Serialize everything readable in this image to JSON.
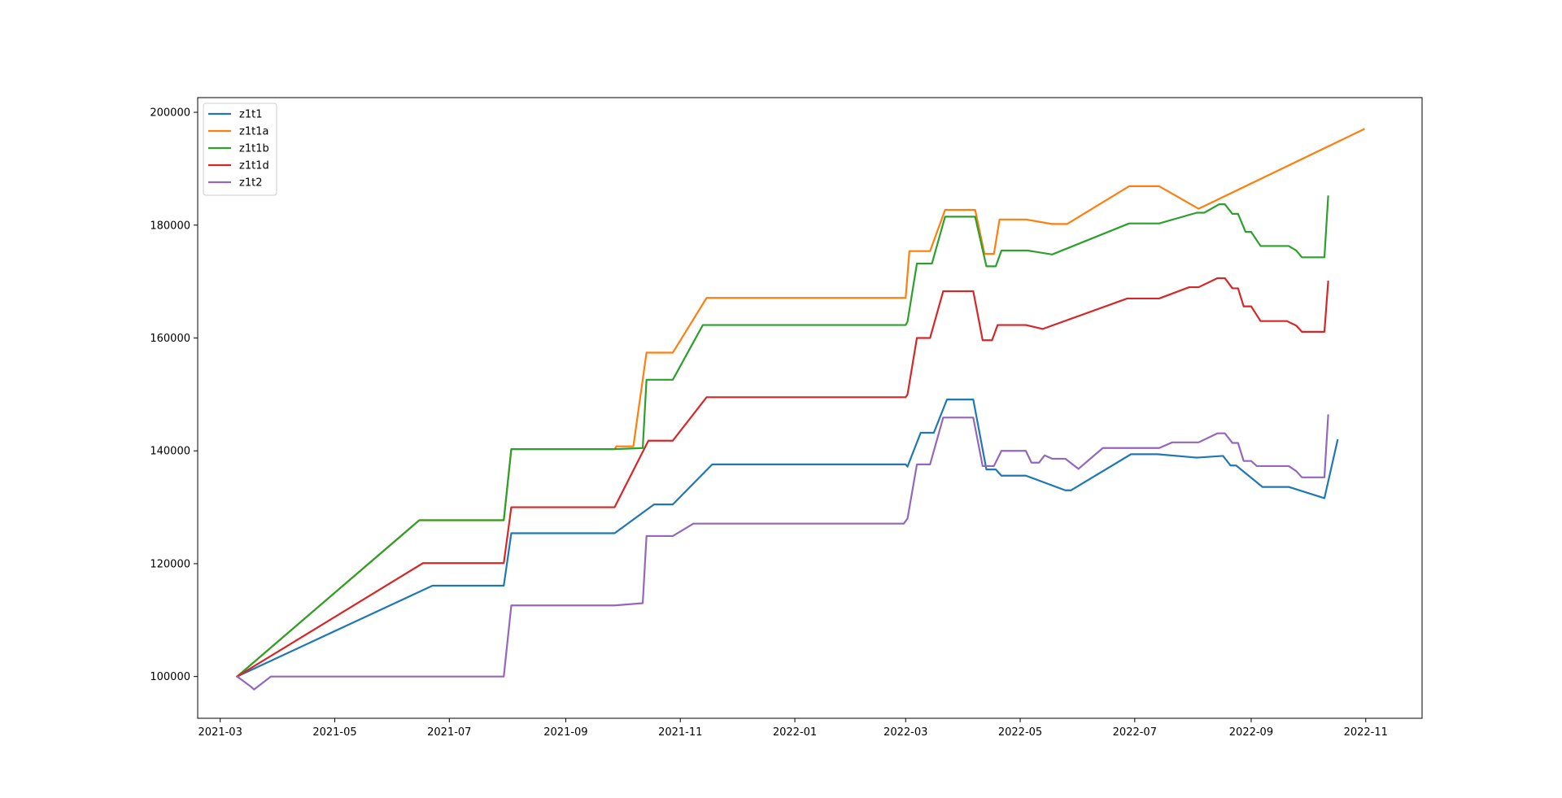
{
  "chart_data": {
    "type": "line",
    "title": "",
    "xlabel": "",
    "ylabel": "",
    "grid": false,
    "legend_position": "top-left",
    "x_ticks": [
      "2021-03",
      "2021-05",
      "2021-07",
      "2021-09",
      "2021-11",
      "2022-01",
      "2022-03",
      "2022-05",
      "2022-07",
      "2022-09",
      "2022-11"
    ],
    "y_ticks": [
      100000,
      120000,
      140000,
      160000,
      180000,
      200000
    ],
    "xlim": [
      "2021-02-17",
      "2022-12-01"
    ],
    "ylim": [
      92600,
      202600
    ],
    "series": [
      {
        "name": "z1t1",
        "color": "#1f77b4",
        "points": [
          [
            "2021-03-10",
            100000
          ],
          [
            "2021-06-22",
            116100
          ],
          [
            "2021-07-30",
            116100
          ],
          [
            "2021-08-03",
            125400
          ],
          [
            "2021-09-27",
            125400
          ],
          [
            "2021-10-18",
            130500
          ],
          [
            "2021-10-28",
            130500
          ],
          [
            "2021-11-18",
            137600
          ],
          [
            "2022-03-01",
            137600
          ],
          [
            "2022-03-02",
            137200
          ],
          [
            "2022-03-09",
            143200
          ],
          [
            "2022-03-16",
            143200
          ],
          [
            "2022-03-23",
            149100
          ],
          [
            "2022-04-06",
            149100
          ],
          [
            "2022-04-13",
            136700
          ],
          [
            "2022-04-18",
            136700
          ],
          [
            "2022-04-21",
            135600
          ],
          [
            "2022-05-04",
            135600
          ],
          [
            "2022-05-25",
            133000
          ],
          [
            "2022-05-28",
            133000
          ],
          [
            "2022-06-29",
            139400
          ],
          [
            "2022-07-13",
            139400
          ],
          [
            "2022-08-03",
            138800
          ],
          [
            "2022-08-17",
            139100
          ],
          [
            "2022-08-21",
            137400
          ],
          [
            "2022-08-24",
            137400
          ],
          [
            "2022-09-07",
            133600
          ],
          [
            "2022-09-21",
            133600
          ],
          [
            "2022-10-10",
            131600
          ],
          [
            "2022-10-17",
            141900
          ]
        ]
      },
      {
        "name": "z1t1a",
        "color": "#ff7f0e",
        "points": [
          [
            "2021-03-10",
            100000
          ],
          [
            "2021-06-15",
            127700
          ],
          [
            "2021-07-30",
            127700
          ],
          [
            "2021-08-03",
            140300
          ],
          [
            "2021-09-27",
            140300
          ],
          [
            "2021-09-28",
            140800
          ],
          [
            "2021-10-07",
            140800
          ],
          [
            "2021-10-14",
            157400
          ],
          [
            "2021-10-28",
            157400
          ],
          [
            "2021-11-15",
            167100
          ],
          [
            "2022-03-01",
            167100
          ],
          [
            "2022-03-03",
            175400
          ],
          [
            "2022-03-14",
            175400
          ],
          [
            "2022-03-22",
            182700
          ],
          [
            "2022-04-07",
            182700
          ],
          [
            "2022-04-12",
            174900
          ],
          [
            "2022-04-17",
            174900
          ],
          [
            "2022-04-20",
            181000
          ],
          [
            "2022-05-04",
            181000
          ],
          [
            "2022-05-18",
            180200
          ],
          [
            "2022-05-26",
            180200
          ],
          [
            "2022-06-28",
            186900
          ],
          [
            "2022-07-14",
            186900
          ],
          [
            "2022-08-04",
            182900
          ],
          [
            "2022-10-31",
            197000
          ]
        ]
      },
      {
        "name": "z1t1b",
        "color": "#2ca02c",
        "points": [
          [
            "2021-03-10",
            100000
          ],
          [
            "2021-06-15",
            127700
          ],
          [
            "2021-07-30",
            127700
          ],
          [
            "2021-08-03",
            140300
          ],
          [
            "2021-09-27",
            140300
          ],
          [
            "2021-10-12",
            140500
          ],
          [
            "2021-10-14",
            152600
          ],
          [
            "2021-10-28",
            152600
          ],
          [
            "2021-11-13",
            162300
          ],
          [
            "2022-03-01",
            162300
          ],
          [
            "2022-03-02",
            162900
          ],
          [
            "2022-03-07",
            173200
          ],
          [
            "2022-03-15",
            173200
          ],
          [
            "2022-03-22",
            181500
          ],
          [
            "2022-04-07",
            181500
          ],
          [
            "2022-04-13",
            172700
          ],
          [
            "2022-04-18",
            172700
          ],
          [
            "2022-04-21",
            175500
          ],
          [
            "2022-05-05",
            175500
          ],
          [
            "2022-05-18",
            174800
          ],
          [
            "2022-06-28",
            180300
          ],
          [
            "2022-07-14",
            180300
          ],
          [
            "2022-08-03",
            182200
          ],
          [
            "2022-08-07",
            182200
          ],
          [
            "2022-08-15",
            183700
          ],
          [
            "2022-08-18",
            183700
          ],
          [
            "2022-08-22",
            182000
          ],
          [
            "2022-08-25",
            182000
          ],
          [
            "2022-08-29",
            178800
          ],
          [
            "2022-09-01",
            178800
          ],
          [
            "2022-09-06",
            176300
          ],
          [
            "2022-09-21",
            176300
          ],
          [
            "2022-09-25",
            175500
          ],
          [
            "2022-09-28",
            174300
          ],
          [
            "2022-10-10",
            174300
          ],
          [
            "2022-10-12",
            185100
          ]
        ]
      },
      {
        "name": "z1t1d",
        "color": "#d62728",
        "points": [
          [
            "2021-03-10",
            100000
          ],
          [
            "2021-06-17",
            120100
          ],
          [
            "2021-07-30",
            120100
          ],
          [
            "2021-08-03",
            130000
          ],
          [
            "2021-09-27",
            130000
          ],
          [
            "2021-10-15",
            141800
          ],
          [
            "2021-10-28",
            141800
          ],
          [
            "2021-11-15",
            149500
          ],
          [
            "2022-03-01",
            149500
          ],
          [
            "2022-03-02",
            150000
          ],
          [
            "2022-03-07",
            160000
          ],
          [
            "2022-03-14",
            160000
          ],
          [
            "2022-03-21",
            168300
          ],
          [
            "2022-04-06",
            168300
          ],
          [
            "2022-04-11",
            159600
          ],
          [
            "2022-04-16",
            159600
          ],
          [
            "2022-04-19",
            162300
          ],
          [
            "2022-05-04",
            162300
          ],
          [
            "2022-05-13",
            161600
          ],
          [
            "2022-06-27",
            167000
          ],
          [
            "2022-07-14",
            167000
          ],
          [
            "2022-07-30",
            169000
          ],
          [
            "2022-08-04",
            169000
          ],
          [
            "2022-08-14",
            170600
          ],
          [
            "2022-08-18",
            170600
          ],
          [
            "2022-08-22",
            168800
          ],
          [
            "2022-08-25",
            168800
          ],
          [
            "2022-08-28",
            165600
          ],
          [
            "2022-09-01",
            165600
          ],
          [
            "2022-09-06",
            163000
          ],
          [
            "2022-09-20",
            163000
          ],
          [
            "2022-09-25",
            162200
          ],
          [
            "2022-09-28",
            161100
          ],
          [
            "2022-10-10",
            161100
          ],
          [
            "2022-10-12",
            170000
          ]
        ]
      },
      {
        "name": "z1t2",
        "color": "#9467bd",
        "points": [
          [
            "2021-03-10",
            100000
          ],
          [
            "2021-03-17",
            98300
          ],
          [
            "2021-03-19",
            97700
          ],
          [
            "2021-03-28",
            100000
          ],
          [
            "2021-07-30",
            100000
          ],
          [
            "2021-08-03",
            112600
          ],
          [
            "2021-09-27",
            112600
          ],
          [
            "2021-10-12",
            113000
          ],
          [
            "2021-10-14",
            124900
          ],
          [
            "2021-10-28",
            124900
          ],
          [
            "2021-11-08",
            127100
          ],
          [
            "2022-02-28",
            127100
          ],
          [
            "2022-03-02",
            128000
          ],
          [
            "2022-03-07",
            137600
          ],
          [
            "2022-03-14",
            137600
          ],
          [
            "2022-03-21",
            145900
          ],
          [
            "2022-04-06",
            145900
          ],
          [
            "2022-04-11",
            137300
          ],
          [
            "2022-04-17",
            137300
          ],
          [
            "2022-04-21",
            140000
          ],
          [
            "2022-05-04",
            140000
          ],
          [
            "2022-05-07",
            137900
          ],
          [
            "2022-05-11",
            137900
          ],
          [
            "2022-05-14",
            139200
          ],
          [
            "2022-05-18",
            138600
          ],
          [
            "2022-05-25",
            138600
          ],
          [
            "2022-06-01",
            136800
          ],
          [
            "2022-06-14",
            140500
          ],
          [
            "2022-07-14",
            140500
          ],
          [
            "2022-07-21",
            141500
          ],
          [
            "2022-08-04",
            141500
          ],
          [
            "2022-08-14",
            143100
          ],
          [
            "2022-08-18",
            143100
          ],
          [
            "2022-08-22",
            141400
          ],
          [
            "2022-08-25",
            141400
          ],
          [
            "2022-08-28",
            138200
          ],
          [
            "2022-09-01",
            138200
          ],
          [
            "2022-09-04",
            137300
          ],
          [
            "2022-09-21",
            137300
          ],
          [
            "2022-09-25",
            136400
          ],
          [
            "2022-09-28",
            135300
          ],
          [
            "2022-10-10",
            135300
          ],
          [
            "2022-10-12",
            146300
          ]
        ]
      }
    ]
  }
}
